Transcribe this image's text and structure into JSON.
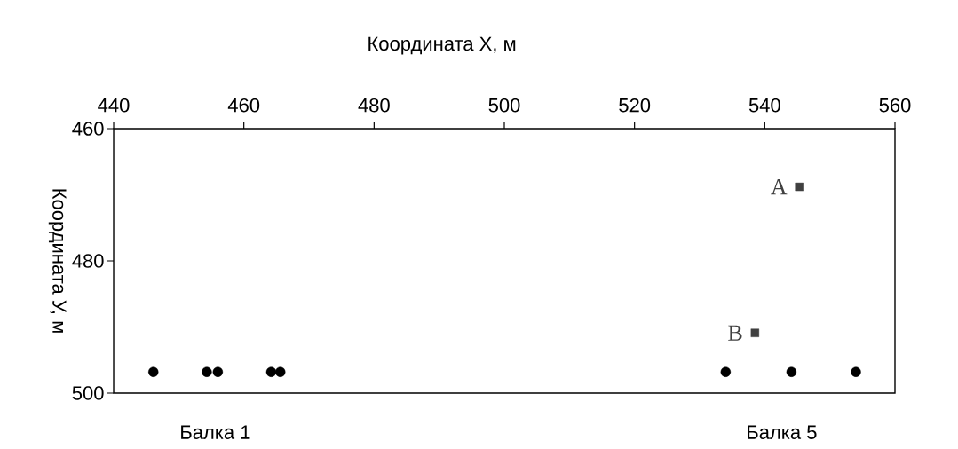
{
  "chart_data": {
    "type": "scatter",
    "xlabel": "Координата X, м",
    "ylabel": "Координата У, м",
    "xlim": [
      440,
      560
    ],
    "xticks": [
      440,
      460,
      480,
      500,
      520,
      540,
      560
    ],
    "ylim": [
      500,
      460
    ],
    "yticks": [
      460,
      480,
      500
    ],
    "series": [
      {
        "color": "#000000",
        "marker": "circle",
        "x": [
          446.1,
          454.3,
          456.0,
          464.2,
          465.6,
          534.0,
          544.1,
          554.0
        ],
        "values": [
          496.8,
          496.8,
          496.8,
          496.8,
          496.8,
          496.8,
          496.8,
          496.8
        ]
      },
      {
        "color": "#404040",
        "marker": "square",
        "x": [
          545.3,
          538.5
        ],
        "values": [
          468.8,
          490.9
        ]
      }
    ],
    "annotations": [
      {
        "text": "A",
        "x": 545.3,
        "y": 468.8
      },
      {
        "text": "B",
        "x": 538.5,
        "y": 490.9
      },
      "Балка 1",
      "Балка 5"
    ]
  }
}
